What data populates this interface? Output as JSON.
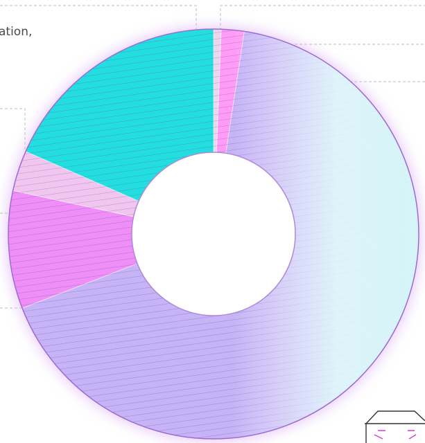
{
  "chart_data": {
    "type": "donut",
    "values": [
      0.6,
      1.8,
      66.7,
      9.3,
      3.2,
      18.4
    ],
    "colors": [
      "#ead6ef",
      "#ff9cf6",
      "#c6b4f6",
      "#ee8ef6",
      "#f1c6ee",
      "#22dedf"
    ],
    "annotations": [
      "ation,"
    ]
  }
}
